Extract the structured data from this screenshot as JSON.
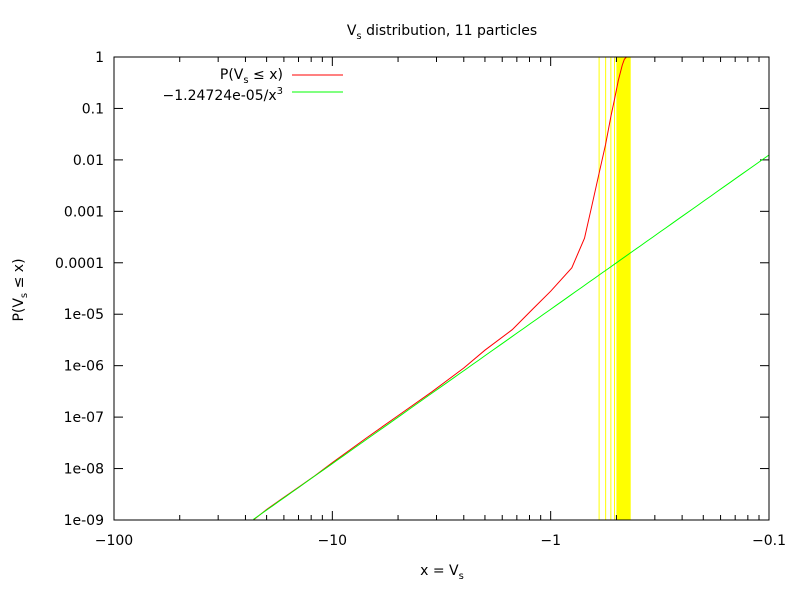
{
  "chart_data": {
    "type": "line",
    "title": "V_s distribution, 11 particles",
    "title_parts": {
      "a": "V",
      "sub": "s",
      "b": " distribution, 11 particles"
    },
    "xlabel": "x = V_s",
    "xlabel_parts": {
      "a": "x = V",
      "sub": "s",
      "b": ""
    },
    "ylabel": "P(V_s ≤ x)",
    "ylabel_parts": {
      "a": "P(V",
      "sub": "s",
      "b": " ≤ x)"
    },
    "x_scale": "reciprocal",
    "y_scale": "log",
    "xlim": [
      -100,
      -0.1
    ],
    "ylim": [
      1e-09,
      1
    ],
    "x_ticks": [
      {
        "value": -100,
        "label": "−100"
      },
      {
        "value": -10,
        "label": "−10"
      },
      {
        "value": -1,
        "label": "−1"
      },
      {
        "value": -0.1,
        "label": "−0.1"
      }
    ],
    "y_ticks": [
      {
        "value": 1,
        "label": "1"
      },
      {
        "value": 0.1,
        "label": "0.1"
      },
      {
        "value": 0.01,
        "label": "0.01"
      },
      {
        "value": 0.001,
        "label": "0.001"
      },
      {
        "value": 0.0001,
        "label": "0.0001"
      },
      {
        "value": 1e-05,
        "label": "1e-05"
      },
      {
        "value": 1e-06,
        "label": "1e-06"
      },
      {
        "value": 1e-07,
        "label": "1e-07"
      },
      {
        "value": 1e-08,
        "label": "1e-08"
      },
      {
        "value": 1e-09,
        "label": "1e-09"
      }
    ],
    "legend_position": "top-left",
    "series": [
      {
        "name": "P(V_s ≤ x)",
        "legend_parts": {
          "a": "P(V",
          "sub": "s",
          "b": " ≤ x)"
        },
        "color": "#ff0000",
        "points": [
          [
            -23.0,
            1e-09
          ],
          [
            -20.0,
            1.6e-09
          ],
          [
            -17.0,
            2.6e-09
          ],
          [
            -14.0,
            4.6e-09
          ],
          [
            -12.0,
            7.3e-09
          ],
          [
            -10.0,
            1.3e-08
          ],
          [
            -7.0,
            3.9e-08
          ],
          [
            -5.0,
            1.07e-07
          ],
          [
            -3.5,
            3.1e-07
          ],
          [
            -2.5,
            9e-07
          ],
          [
            -2.0,
            2e-06
          ],
          [
            -1.5,
            5e-06
          ],
          [
            -1.2,
            1.3e-05
          ],
          [
            -1.0,
            2.8e-05
          ],
          [
            -0.8,
            8e-05
          ],
          [
            -0.7,
            0.0003
          ],
          [
            -0.65,
            0.0012
          ],
          [
            -0.6,
            0.0055
          ],
          [
            -0.56,
            0.02
          ],
          [
            -0.53,
            0.07
          ],
          [
            -0.51,
            0.15
          ],
          [
            -0.49,
            0.35
          ],
          [
            -0.47,
            0.7
          ],
          [
            -0.46,
            0.9
          ],
          [
            -0.45,
            1.0
          ]
        ]
      },
      {
        "name": "−1.24724e-05/x^3",
        "legend_parts": {
          "a": "−1.24724e-05/x",
          "sup": "3"
        },
        "color": "#00ff00",
        "coefficient": -1.24724e-05,
        "exponent": 3,
        "x_range": [
          -23.0,
          -0.1
        ]
      }
    ],
    "shaded_samples": {
      "color": "#ffff00",
      "lines_x": [
        -0.6,
        -0.56,
        -0.53,
        -0.51
      ],
      "band_x": [
        -0.5,
        -0.43
      ]
    }
  }
}
